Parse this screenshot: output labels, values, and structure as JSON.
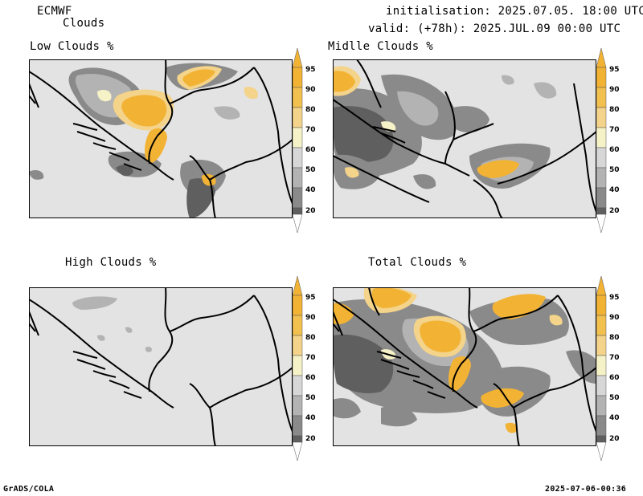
{
  "header": {
    "model": "ECMWF",
    "product": "Clouds",
    "initialisation": "initialisation: 2025.07.05. 18:00 UTC",
    "valid": "valid: (+78h): 2025.JUL.09 00:00 UTC"
  },
  "panels": [
    {
      "title": "Low Clouds %"
    },
    {
      "title": "Midlle Clouds %"
    },
    {
      "title": "High Clouds %"
    },
    {
      "title": "Total Clouds %"
    }
  ],
  "colorbar": {
    "levels": [
      "95",
      "90",
      "80",
      "70",
      "60",
      "50",
      "40",
      "20"
    ],
    "colors": {
      "c95": "#f2b335",
      "c90": "#f1c04f",
      "c80": "#f4d38a",
      "c70": "#f6f2c8",
      "c60": "#d7d7d7",
      "c50": "#b3b3b3",
      "c40": "#8a8a8a",
      "c20": "#5f5f5f",
      "low": "#ffffff",
      "background": "#e3e3e3"
    }
  },
  "footer": {
    "left": "GrADS/COLA",
    "right": "2025-07-06-00:36"
  }
}
